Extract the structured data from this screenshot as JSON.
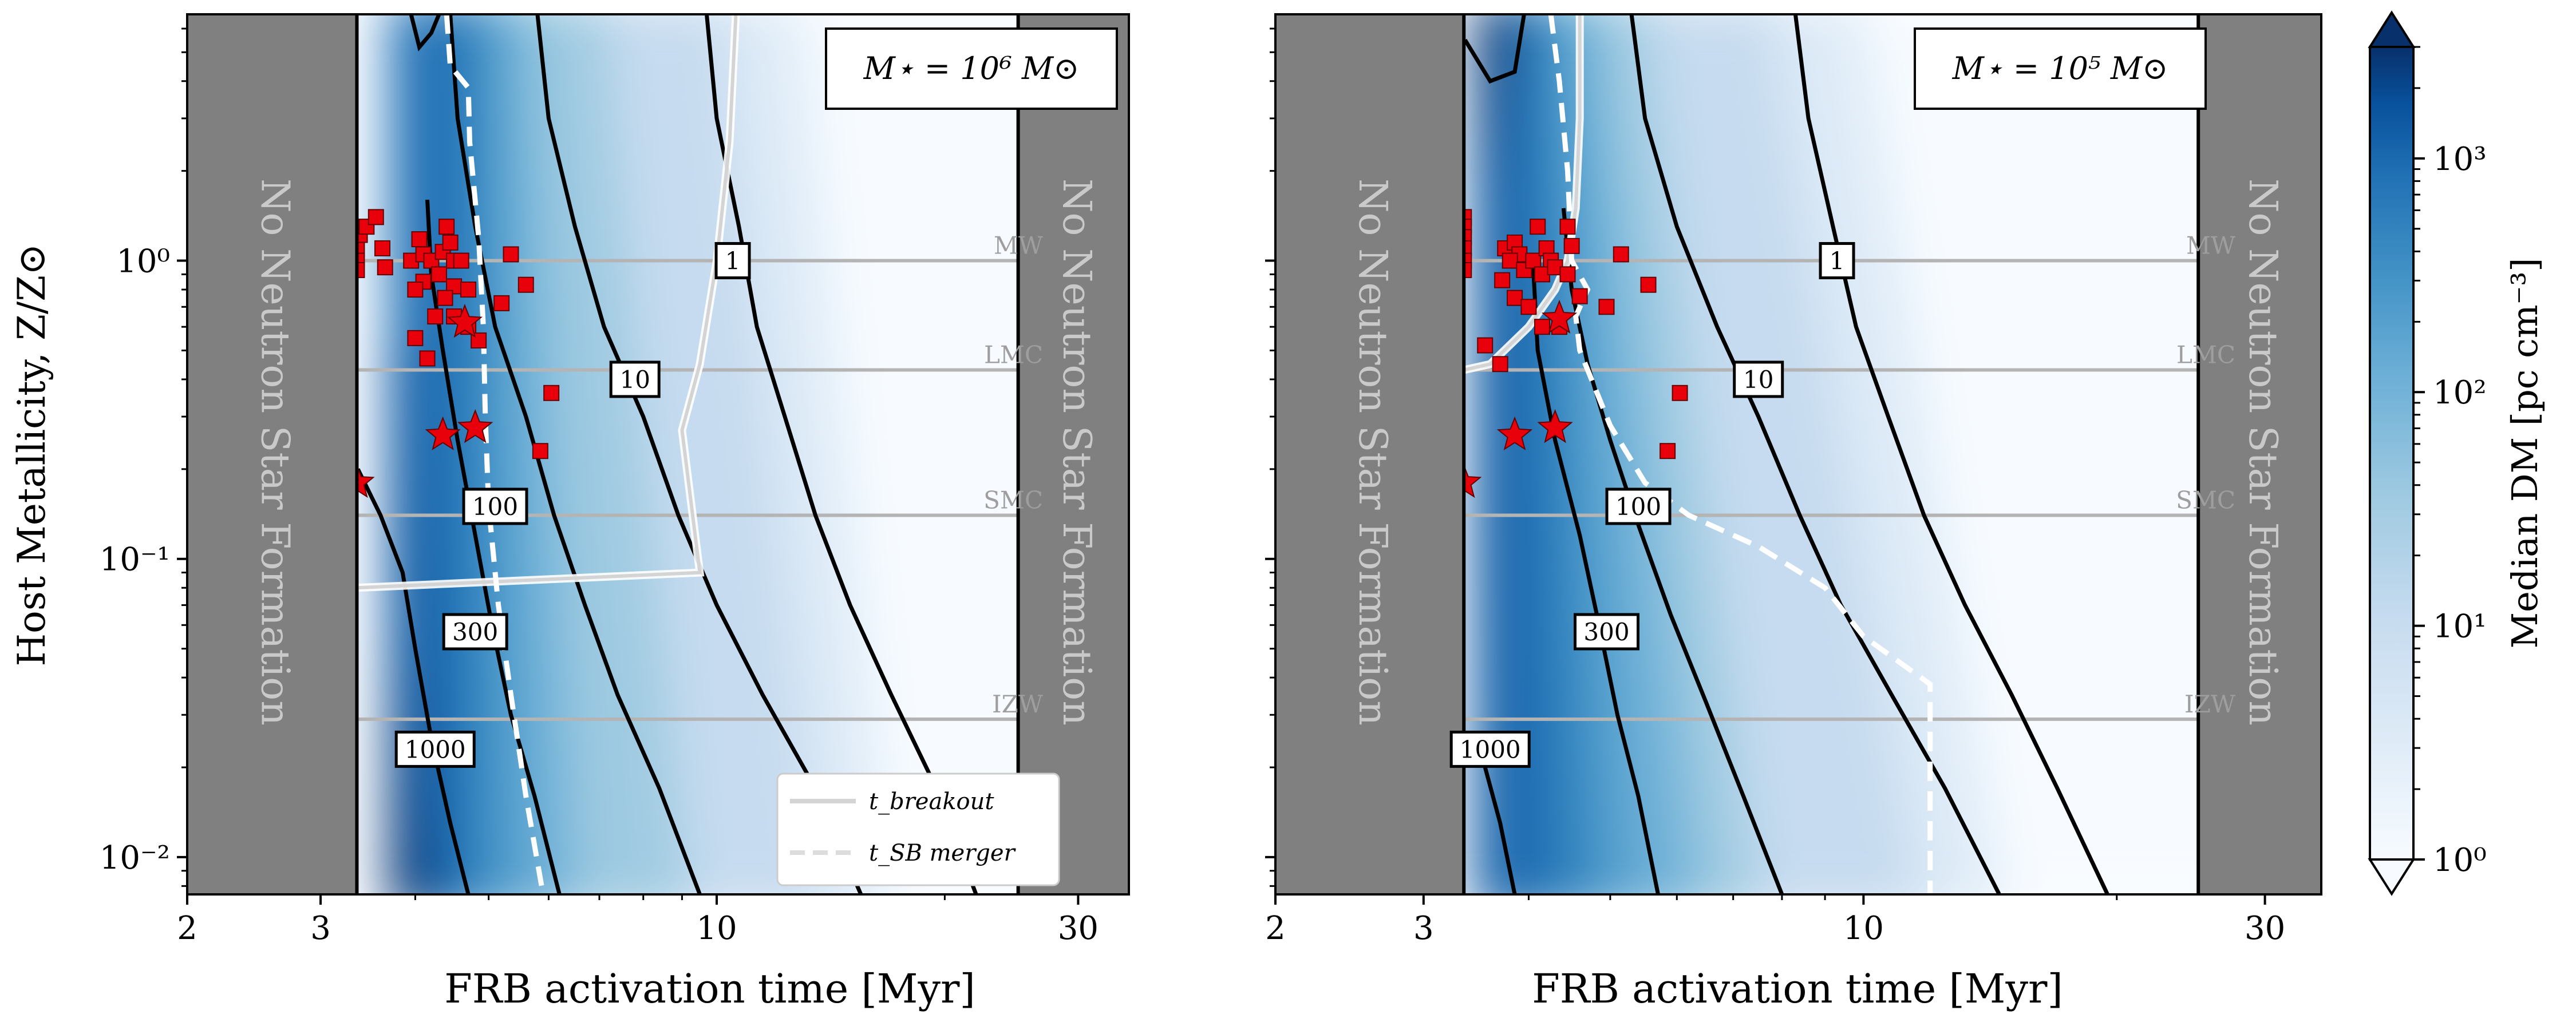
{
  "figure": {
    "ylabel": "Host Metallicity, Z/Z⊙",
    "xlabel": "FRB activation time [Myr]",
    "no_ns_label": "No Neutron Star Formation",
    "colorbar": {
      "label": "Median DM [pc cm⁻³]",
      "scale": "log",
      "range": [
        1,
        3000
      ],
      "ticks": [
        {
          "value": 1,
          "label": "10⁰"
        },
        {
          "value": 10,
          "label": "10¹"
        },
        {
          "value": 100,
          "label": "10²"
        },
        {
          "value": 1000,
          "label": "10³"
        }
      ],
      "colormap": "Blues",
      "extend": "both"
    },
    "legend": {
      "placement": "lower-right of left panel",
      "entries": [
        {
          "label": "t_breakout",
          "color": "#d4d4d4",
          "style": "solid"
        },
        {
          "label": "t_SB merger",
          "color": "#dcdcdc",
          "style": "dashed"
        }
      ]
    },
    "reference_lines": [
      {
        "name": "MW",
        "z": 1.0
      },
      {
        "name": "LMC",
        "z": 0.43
      },
      {
        "name": "SMC",
        "z": 0.14
      },
      {
        "name": "IZW",
        "z": 0.029
      }
    ],
    "colors": {
      "ns_shade": "#808080",
      "ref_line": "#b4b4b4",
      "marker": "#e8000b",
      "contour": "#000000"
    }
  },
  "chart_data": [
    {
      "type": "heatmap",
      "title": "M⋆ = 10⁶ M⊙",
      "xscale": "log",
      "yscale": "log",
      "xlim": [
        2,
        35
      ],
      "ylim": [
        0.0075,
        6.7
      ],
      "xticks": [
        2,
        3,
        10,
        30
      ],
      "yticks": [
        {
          "value": 0.01,
          "label": "10⁻²"
        },
        {
          "value": 0.1,
          "label": "10⁻¹"
        },
        {
          "value": 1,
          "label": "10⁰"
        }
      ],
      "no_ns_regions": [
        [
          2,
          3.35
        ],
        [
          25,
          35
        ]
      ],
      "contours": [
        {
          "level": 1,
          "label": "1",
          "label_pos": [
            10.5,
            1.0
          ],
          "points": [
            [
              9.7,
              6.7
            ],
            [
              10.0,
              3.0
            ],
            [
              10.7,
              1.3
            ],
            [
              11.3,
              0.6
            ],
            [
              12.3,
              0.3
            ],
            [
              13.5,
              0.14
            ],
            [
              15.0,
              0.07
            ],
            [
              17.0,
              0.035
            ],
            [
              19.5,
              0.017
            ],
            [
              22.0,
              0.0075
            ]
          ]
        },
        {
          "level": 10,
          "label": "10",
          "label_pos": [
            7.8,
            0.4
          ],
          "points": [
            [
              5.8,
              6.7
            ],
            [
              6.0,
              3.0
            ],
            [
              6.5,
              1.3
            ],
            [
              7.1,
              0.6
            ],
            [
              8.0,
              0.3
            ],
            [
              8.9,
              0.14
            ],
            [
              10.0,
              0.07
            ],
            [
              11.5,
              0.035
            ],
            [
              13.5,
              0.017
            ],
            [
              15.5,
              0.0075
            ]
          ]
        },
        {
          "level": 100,
          "label": "100",
          "label_pos": [
            5.1,
            0.15
          ],
          "points": [
            [
              4.45,
              6.7
            ],
            [
              4.55,
              3.0
            ],
            [
              4.8,
              1.3
            ],
            [
              5.1,
              0.6
            ],
            [
              5.6,
              0.3
            ],
            [
              6.1,
              0.14
            ],
            [
              6.7,
              0.07
            ],
            [
              7.4,
              0.035
            ],
            [
              8.4,
              0.017
            ],
            [
              9.5,
              0.0075
            ]
          ]
        },
        {
          "level": 300,
          "label": "300",
          "label_pos": [
            4.8,
            0.057
          ],
          "points": [
            [
              4.15,
              1.6
            ],
            [
              4.2,
              0.9
            ],
            [
              4.35,
              0.5
            ],
            [
              4.55,
              0.25
            ],
            [
              4.8,
              0.12
            ],
            [
              5.05,
              0.06
            ],
            [
              5.35,
              0.03
            ],
            [
              5.75,
              0.016
            ],
            [
              6.2,
              0.0075
            ]
          ]
        },
        {
          "level": 1000,
          "label": "1000",
          "label_pos": [
            4.25,
            0.023
          ],
          "points": [
            [
              3.36,
              0.2
            ],
            [
              3.6,
              0.14
            ],
            [
              3.85,
              0.09
            ],
            [
              4.0,
              0.05
            ],
            [
              4.2,
              0.025
            ],
            [
              4.45,
              0.013
            ],
            [
              4.7,
              0.0075
            ]
          ]
        },
        {
          "level": 3000,
          "label": "",
          "label_pos": null,
          "points": [
            [
              3.95,
              6.7
            ],
            [
              4.05,
              5.2
            ],
            [
              4.2,
              5.8
            ],
            [
              4.3,
              6.7
            ]
          ]
        }
      ],
      "breakout": [
        [
          10.6,
          6.7
        ],
        [
          10.4,
          2.5
        ],
        [
          10.0,
          1.0
        ],
        [
          9.5,
          0.45
        ],
        [
          9.0,
          0.27
        ],
        [
          9.5,
          0.09
        ],
        [
          3.35,
          0.08
        ]
      ],
      "sb_merger": [
        [
          4.4,
          6.7
        ],
        [
          4.45,
          4.5
        ],
        [
          4.7,
          3.8
        ],
        [
          4.72,
          2.5
        ],
        [
          4.85,
          1.2
        ],
        [
          4.92,
          0.6
        ],
        [
          4.95,
          0.3
        ],
        [
          5.0,
          0.15
        ],
        [
          5.15,
          0.07
        ],
        [
          5.35,
          0.035
        ],
        [
          5.6,
          0.016
        ],
        [
          5.9,
          0.0075
        ]
      ],
      "frbs": [
        {
          "x": 3.35,
          "y": 1.1,
          "upper_limit": true
        },
        {
          "x": 3.35,
          "y": 1.0,
          "upper_limit": true
        },
        {
          "x": 3.35,
          "y": 0.93,
          "upper_limit": true
        },
        {
          "x": 3.38,
          "y": 1.22,
          "upper_limit": true
        },
        {
          "x": 3.45,
          "y": 1.3
        },
        {
          "x": 3.55,
          "y": 1.4
        },
        {
          "x": 3.62,
          "y": 1.1
        },
        {
          "x": 3.65,
          "y": 0.95
        },
        {
          "x": 3.95,
          "y": 1.0
        },
        {
          "x": 4.05,
          "y": 1.18
        },
        {
          "x": 4.1,
          "y": 1.05
        },
        {
          "x": 4.2,
          "y": 1.0
        },
        {
          "x": 4.3,
          "y": 0.9
        },
        {
          "x": 4.35,
          "y": 1.07
        },
        {
          "x": 4.4,
          "y": 1.3
        },
        {
          "x": 4.45,
          "y": 1.15
        },
        {
          "x": 4.5,
          "y": 1.0
        },
        {
          "x": 4.5,
          "y": 0.82
        },
        {
          "x": 4.38,
          "y": 0.75
        },
        {
          "x": 4.1,
          "y": 0.85
        },
        {
          "x": 4.0,
          "y": 0.8
        },
        {
          "x": 4.25,
          "y": 0.65
        },
        {
          "x": 4.6,
          "y": 1.0
        },
        {
          "x": 4.7,
          "y": 0.8
        },
        {
          "x": 4.5,
          "y": 0.65
        },
        {
          "x": 4.7,
          "y": 0.6
        },
        {
          "x": 4.85,
          "y": 0.54
        },
        {
          "x": 4.0,
          "y": 0.55
        },
        {
          "x": 4.15,
          "y": 0.47
        },
        {
          "x": 5.35,
          "y": 1.05
        },
        {
          "x": 5.6,
          "y": 0.83
        },
        {
          "x": 5.2,
          "y": 0.72
        },
        {
          "x": 6.05,
          "y": 0.36
        },
        {
          "x": 5.85,
          "y": 0.23
        }
      ],
      "stars": [
        {
          "x": 3.35,
          "y": 0.18,
          "upper_limit": true
        },
        {
          "x": 4.35,
          "y": 0.26
        },
        {
          "x": 4.8,
          "y": 0.275
        },
        {
          "x": 4.65,
          "y": 0.62
        }
      ]
    },
    {
      "type": "heatmap",
      "title": "M⋆ = 10⁵ M⊙",
      "xscale": "log",
      "yscale": "log",
      "xlim": [
        2,
        35
      ],
      "ylim": [
        0.0075,
        6.7
      ],
      "xticks": [
        2,
        3,
        10,
        30
      ],
      "yticks": [
        {
          "value": 0.01,
          "label": ""
        },
        {
          "value": 0.1,
          "label": ""
        },
        {
          "value": 1,
          "label": ""
        }
      ],
      "no_ns_regions": [
        [
          2,
          3.35
        ],
        [
          25,
          35
        ]
      ],
      "contours": [
        {
          "level": 1,
          "label": "1",
          "label_pos": [
            9.3,
            1.0
          ],
          "points": [
            [
              8.3,
              6.7
            ],
            [
              8.6,
              3.0
            ],
            [
              9.2,
              1.3
            ],
            [
              9.8,
              0.6
            ],
            [
              10.7,
              0.3
            ],
            [
              11.8,
              0.14
            ],
            [
              13.2,
              0.07
            ],
            [
              15.0,
              0.035
            ],
            [
              17.0,
              0.017
            ],
            [
              19.5,
              0.0075
            ]
          ]
        },
        {
          "level": 10,
          "label": "10",
          "label_pos": [
            7.5,
            0.4
          ],
          "points": [
            [
              5.3,
              6.7
            ],
            [
              5.5,
              3.0
            ],
            [
              6.0,
              1.3
            ],
            [
              6.7,
              0.6
            ],
            [
              7.5,
              0.3
            ],
            [
              8.4,
              0.14
            ],
            [
              9.4,
              0.07
            ],
            [
              10.8,
              0.035
            ],
            [
              12.5,
              0.017
            ],
            [
              14.5,
              0.0075
            ]
          ]
        },
        {
          "level": 100,
          "label": "100",
          "label_pos": [
            5.4,
            0.15
          ],
          "points": [
            [
              4.4,
              1.5
            ],
            [
              4.5,
              0.8
            ],
            [
              4.7,
              0.45
            ],
            [
              5.0,
              0.25
            ],
            [
              5.4,
              0.13
            ],
            [
              5.9,
              0.065
            ],
            [
              6.5,
              0.033
            ],
            [
              7.2,
              0.016
            ],
            [
              8.0,
              0.0075
            ]
          ]
        },
        {
          "level": 300,
          "label": "300",
          "label_pos": [
            4.95,
            0.057
          ],
          "points": [
            [
              4.05,
              0.95
            ],
            [
              4.1,
              0.5
            ],
            [
              4.3,
              0.25
            ],
            [
              4.6,
              0.12
            ],
            [
              4.85,
              0.06
            ],
            [
              5.1,
              0.03
            ],
            [
              5.4,
              0.016
            ],
            [
              5.7,
              0.0075
            ]
          ]
        },
        {
          "level": 1000,
          "label": "1000",
          "label_pos": [
            3.6,
            0.023
          ],
          "points": [
            [
              3.36,
              0.026
            ],
            [
              3.55,
              0.02
            ],
            [
              3.7,
              0.013
            ],
            [
              3.85,
              0.0075
            ]
          ]
        },
        {
          "level": 3000,
          "label": "",
          "label_pos": null,
          "points": [
            [
              3.36,
              5.5
            ],
            [
              3.6,
              4.0
            ],
            [
              3.85,
              4.3
            ],
            [
              3.95,
              6.7
            ]
          ]
        }
      ],
      "breakout": [
        [
          4.6,
          6.7
        ],
        [
          4.6,
          3.0
        ],
        [
          4.55,
          1.5
        ],
        [
          4.45,
          1.0
        ],
        [
          4.3,
          0.8
        ],
        [
          4.0,
          0.6
        ],
        [
          3.6,
          0.45
        ],
        [
          3.35,
          0.43
        ]
      ],
      "sb_merger": [
        [
          4.25,
          6.7
        ],
        [
          4.35,
          4.0
        ],
        [
          4.45,
          2.0
        ],
        [
          4.5,
          1.0
        ],
        [
          4.7,
          0.8
        ],
        [
          4.55,
          0.65
        ],
        [
          4.6,
          0.5
        ],
        [
          5.0,
          0.28
        ],
        [
          5.5,
          0.18
        ],
        [
          6.2,
          0.14
        ],
        [
          7.5,
          0.11
        ],
        [
          9.0,
          0.08
        ],
        [
          10.0,
          0.055
        ],
        [
          12.0,
          0.038
        ],
        [
          12.0,
          0.0075
        ]
      ],
      "frbs": [
        {
          "x": 3.35,
          "y": 1.4,
          "upper_limit": true
        },
        {
          "x": 3.35,
          "y": 1.3,
          "upper_limit": true
        },
        {
          "x": 3.35,
          "y": 1.2,
          "upper_limit": true
        },
        {
          "x": 3.35,
          "y": 1.1,
          "upper_limit": true
        },
        {
          "x": 3.35,
          "y": 1.0,
          "upper_limit": true
        },
        {
          "x": 3.35,
          "y": 0.93,
          "upper_limit": true
        },
        {
          "x": 3.75,
          "y": 1.1
        },
        {
          "x": 3.85,
          "y": 1.15
        },
        {
          "x": 3.9,
          "y": 1.05
        },
        {
          "x": 3.8,
          "y": 1.0
        },
        {
          "x": 3.95,
          "y": 0.93
        },
        {
          "x": 4.05,
          "y": 1.0
        },
        {
          "x": 4.1,
          "y": 1.3
        },
        {
          "x": 4.2,
          "y": 1.1
        },
        {
          "x": 4.25,
          "y": 1.0
        },
        {
          "x": 4.15,
          "y": 0.9
        },
        {
          "x": 4.3,
          "y": 0.95
        },
        {
          "x": 4.45,
          "y": 0.9
        },
        {
          "x": 4.45,
          "y": 1.3
        },
        {
          "x": 4.5,
          "y": 1.12
        },
        {
          "x": 3.72,
          "y": 0.86
        },
        {
          "x": 3.85,
          "y": 0.75
        },
        {
          "x": 4.0,
          "y": 0.7
        },
        {
          "x": 4.15,
          "y": 0.6
        },
        {
          "x": 4.35,
          "y": 0.6
        },
        {
          "x": 4.6,
          "y": 0.76
        },
        {
          "x": 5.15,
          "y": 1.05
        },
        {
          "x": 5.55,
          "y": 0.83
        },
        {
          "x": 4.95,
          "y": 0.7
        },
        {
          "x": 3.55,
          "y": 0.52
        },
        {
          "x": 3.7,
          "y": 0.45
        },
        {
          "x": 6.05,
          "y": 0.36
        },
        {
          "x": 5.85,
          "y": 0.23
        }
      ],
      "stars": [
        {
          "x": 3.35,
          "y": 0.18,
          "upper_limit": true
        },
        {
          "x": 3.85,
          "y": 0.26
        },
        {
          "x": 4.3,
          "y": 0.275
        },
        {
          "x": 4.35,
          "y": 0.64
        }
      ]
    }
  ]
}
